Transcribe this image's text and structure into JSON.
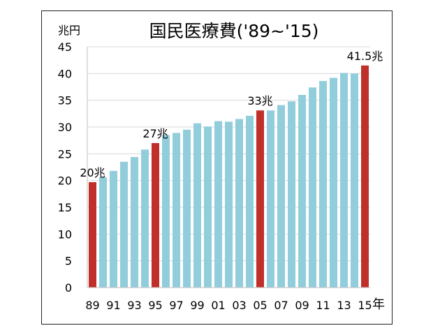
{
  "chart_data": {
    "type": "bar",
    "title": "国民医療費('89~'15)",
    "ylabel": "兆円",
    "xlabel": "年",
    "ylim": [
      0,
      45
    ],
    "yticks": [
      0,
      5,
      10,
      15,
      20,
      25,
      30,
      35,
      40,
      45
    ],
    "grid": true,
    "categories": [
      "89",
      "90",
      "91",
      "92",
      "93",
      "94",
      "95",
      "96",
      "97",
      "98",
      "99",
      "00",
      "01",
      "02",
      "03",
      "04",
      "05",
      "06",
      "07",
      "08",
      "09",
      "10",
      "11",
      "12",
      "13",
      "14",
      "15"
    ],
    "x_tick_labels": [
      "89",
      "91",
      "93",
      "95",
      "97",
      "99",
      "01",
      "03",
      "05",
      "07",
      "09",
      "11",
      "13",
      "15"
    ],
    "values": [
      19.7,
      20.6,
      21.8,
      23.5,
      24.4,
      25.8,
      27.0,
      28.5,
      28.9,
      29.5,
      30.7,
      30.1,
      31.1,
      31.0,
      31.5,
      32.1,
      33.1,
      33.1,
      34.1,
      34.8,
      36.0,
      37.4,
      38.6,
      39.2,
      40.1,
      40.0,
      41.5
    ],
    "highlighted": [
      "89",
      "95",
      "05",
      "15"
    ],
    "annotations": [
      {
        "category": "89",
        "text": "20兆"
      },
      {
        "category": "95",
        "text": "27兆"
      },
      {
        "category": "05",
        "text": "33兆"
      },
      {
        "category": "15",
        "text": "41.5兆"
      }
    ],
    "colors": {
      "bar": "#92CDDC",
      "highlight": "#C0302B",
      "grid": "#D9D9D9",
      "axis": "#BFBFBF"
    }
  }
}
